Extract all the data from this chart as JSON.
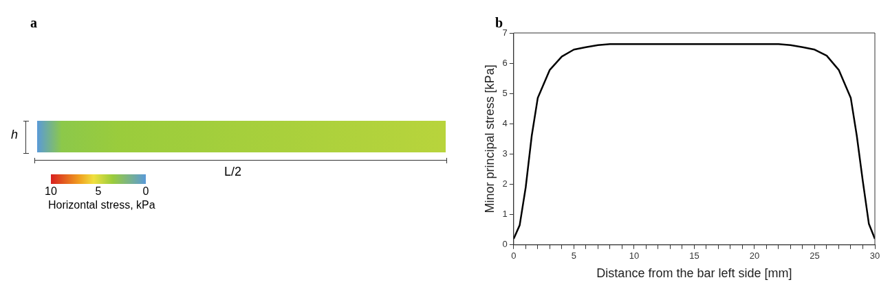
{
  "chart_data": [
    {
      "type": "other",
      "title": "a",
      "annotations": [
        "h",
        "L/2",
        "10",
        "5",
        "0"
      ],
      "clabel": "Horizontal stress, kPa"
    },
    {
      "type": "line",
      "title": "b",
      "xlabel": "Distance from the bar left side [mm]",
      "ylabel": "Minor principal stress [kPa]",
      "x": [
        0,
        0.5,
        1,
        1.5,
        2,
        3,
        4,
        5,
        6,
        7,
        8,
        10,
        15,
        20,
        22,
        23,
        24,
        25,
        26,
        27,
        28,
        28.5,
        29,
        29.5,
        30
      ],
      "series": [
        {
          "color": "#000000",
          "values": [
            0.2,
            0.65,
            1.9,
            3.6,
            4.85,
            5.78,
            6.22,
            6.45,
            6.53,
            6.6,
            6.63,
            6.63,
            6.63,
            6.63,
            6.63,
            6.6,
            6.53,
            6.45,
            6.25,
            5.78,
            4.85,
            3.6,
            2.1,
            0.7,
            0.2
          ]
        }
      ],
      "xlim": [
        0,
        30
      ],
      "ylim": [
        0,
        7
      ],
      "xticks": [
        0,
        {
          "value": 1,
          "label": null
        },
        {
          "value": 2,
          "label": null
        },
        {
          "value": 3,
          "label": null
        },
        {
          "value": 4,
          "label": null
        },
        5,
        {
          "value": 6,
          "label": null
        },
        {
          "value": 7,
          "label": null
        },
        {
          "value": 8,
          "label": null
        },
        {
          "value": 9,
          "label": null
        },
        10,
        {
          "value": 11,
          "label": null
        },
        {
          "value": 12,
          "label": null
        },
        {
          "value": 13,
          "label": null
        },
        {
          "value": 14,
          "label": null
        },
        15,
        {
          "value": 16,
          "label": null
        },
        {
          "value": 17,
          "label": null
        },
        {
          "value": 18,
          "label": null
        },
        {
          "value": 19,
          "label": null
        },
        20,
        {
          "value": 21,
          "label": null
        },
        {
          "value": 22,
          "label": null
        },
        {
          "value": 23,
          "label": null
        },
        {
          "value": 24,
          "label": null
        },
        25,
        {
          "value": 26,
          "label": null
        },
        {
          "value": 27,
          "label": null
        },
        {
          "value": 28,
          "label": null
        },
        {
          "value": 29,
          "label": null
        },
        30
      ],
      "yticks": [
        0,
        1,
        2,
        3,
        4,
        5,
        6,
        7
      ],
      "grid": false,
      "legend": false,
      "marker": "none",
      "line_style": "solid"
    }
  ]
}
